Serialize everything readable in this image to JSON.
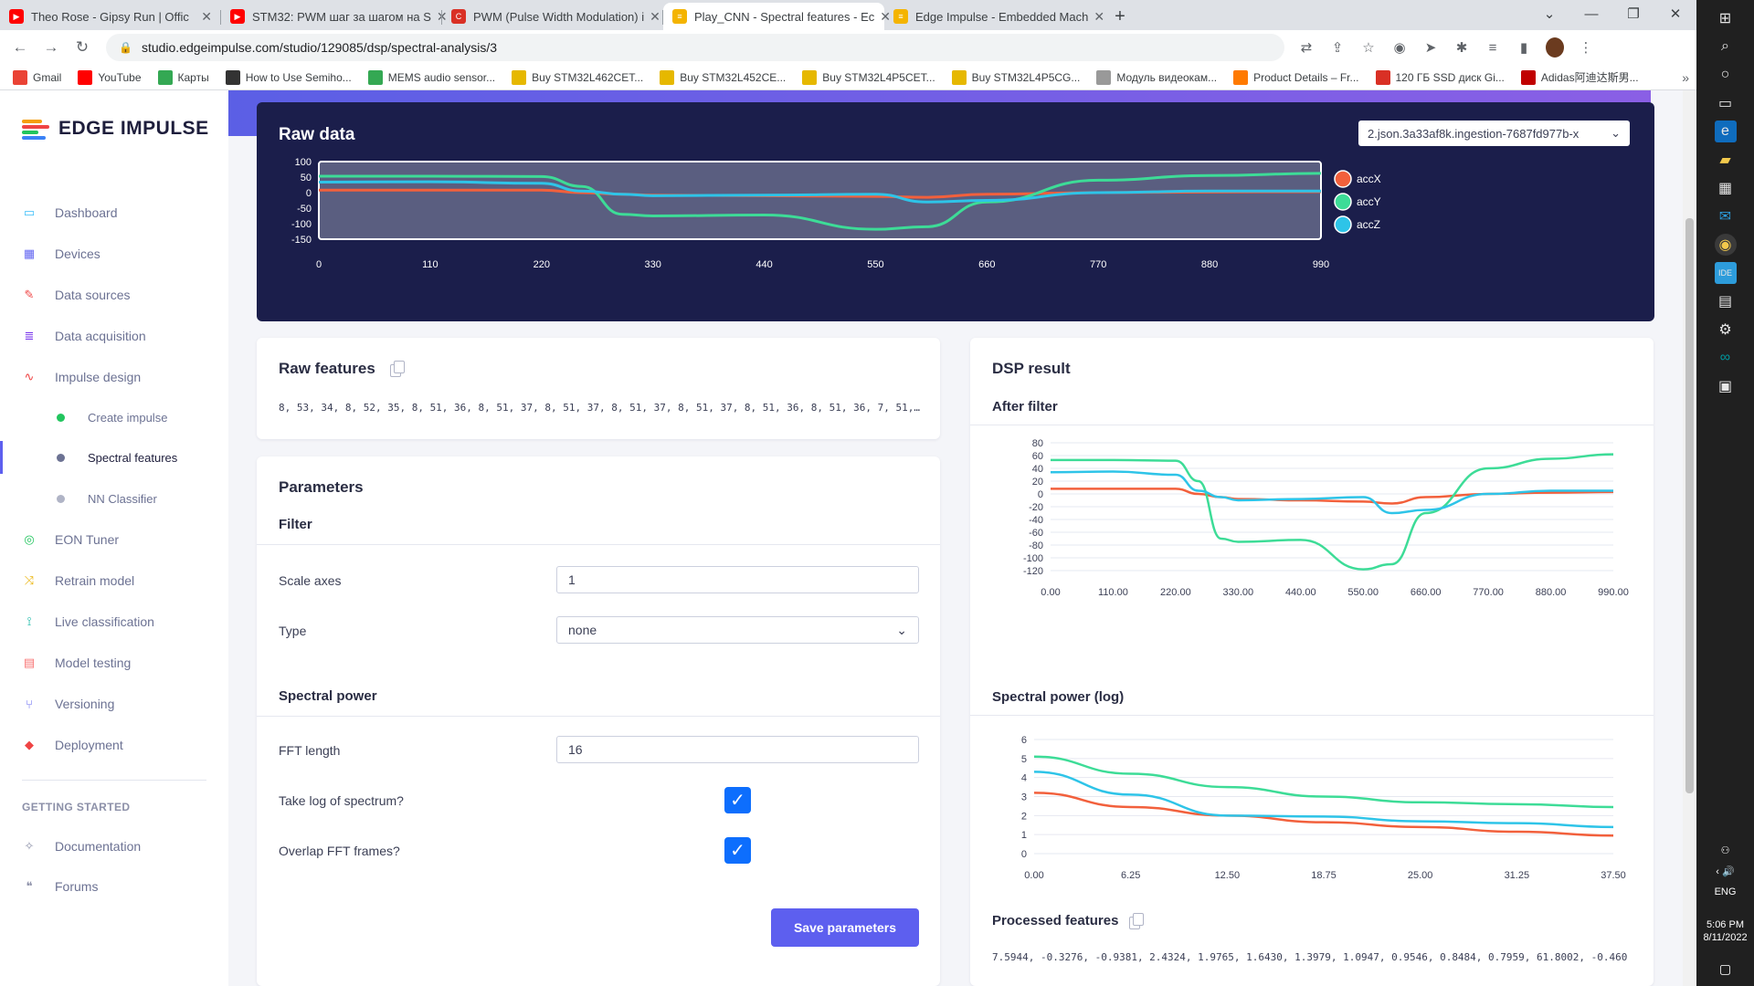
{
  "browser": {
    "tabs": [
      {
        "title": "Theo Rose - Gipsy Run | Offic",
        "icon_color": "#ff0000"
      },
      {
        "title": "STM32: PWM шаг за шагом на S",
        "icon_color": "#ff0000"
      },
      {
        "title": "PWM (Pulse Width Modulation) i",
        "icon_color": "#d93025"
      },
      {
        "title": "Play_CNN - Spectral features - Ec",
        "icon_color": "#f4b400"
      },
      {
        "title": "Edge Impulse - Embedded Mach",
        "icon_color": "#f4b400"
      }
    ],
    "url": "studio.edgeimpulse.com/studio/129085/dsp/spectral-analysis/3",
    "bookmarks": [
      {
        "label": "Gmail",
        "color": "#ea4335"
      },
      {
        "label": "YouTube",
        "color": "#ff0000"
      },
      {
        "label": "Карты",
        "color": "#34a853"
      },
      {
        "label": "How to Use Semiho...",
        "color": "#333333"
      },
      {
        "label": "MEMS audio sensor...",
        "color": "#34a853"
      },
      {
        "label": "Buy STM32L462CET...",
        "color": "#e6b800"
      },
      {
        "label": "Buy STM32L452CE...",
        "color": "#e6b800"
      },
      {
        "label": "Buy STM32L4P5CET...",
        "color": "#e6b800"
      },
      {
        "label": "Buy STM32L4P5CG...",
        "color": "#e6b800"
      },
      {
        "label": "Модуль видеокам...",
        "color": "#999999"
      },
      {
        "label": "Product Details – Fr...",
        "color": "#ff7a00"
      },
      {
        "label": "120 ГБ SSD диск Gi...",
        "color": "#d93025"
      },
      {
        "label": "Adidas阿迪达斯男...",
        "color": "#c00000"
      }
    ]
  },
  "brand": {
    "name": "EDGE IMPULSE"
  },
  "sidebar": {
    "items": [
      {
        "label": "Dashboard",
        "icon": "monitor-icon",
        "color": "#38bdf8"
      },
      {
        "label": "Devices",
        "icon": "chip-icon",
        "color": "#6366f1"
      },
      {
        "label": "Data sources",
        "icon": "wand-icon",
        "color": "#ef4444"
      },
      {
        "label": "Data acquisition",
        "icon": "database-icon",
        "color": "#7c3aed"
      },
      {
        "label": "Impulse design",
        "icon": "pulse-icon",
        "color": "#ef4444"
      }
    ],
    "subitems": [
      {
        "label": "Create impulse",
        "color": "#22c55e"
      },
      {
        "label": "Spectral features",
        "color": "#6c7293"
      },
      {
        "label": "NN Classifier",
        "color": "#b0b4c6"
      }
    ],
    "items2": [
      {
        "label": "EON Tuner",
        "icon": "target-icon",
        "color": "#22c55e"
      },
      {
        "label": "Retrain model",
        "icon": "shuffle-icon",
        "color": "#eab308"
      },
      {
        "label": "Live classification",
        "icon": "signal-icon",
        "color": "#14b8a6"
      },
      {
        "label": "Model testing",
        "icon": "clipboard-icon",
        "color": "#f87171"
      },
      {
        "label": "Versioning",
        "icon": "branch-icon",
        "color": "#6366f1"
      },
      {
        "label": "Deployment",
        "icon": "box-icon",
        "color": "#ef4444"
      }
    ],
    "getting_started": "GETTING STARTED",
    "items3": [
      {
        "label": "Documentation",
        "icon": "book-icon"
      },
      {
        "label": "Forums",
        "icon": "chat-icon"
      }
    ]
  },
  "raw_data": {
    "title": "Raw data",
    "selected_sample": "2.json.3a33af8k.ingestion-7687fd977b-x"
  },
  "raw_features": {
    "title": "Raw features",
    "values": "8, 53, 34, 8, 52, 35, 8, 51, 36, 8, 51, 37, 8, 51, 37, 8, 51, 37, 8, 51, 37, 8, 51, 36, 8, 51, 36, 7, 51,…"
  },
  "parameters": {
    "title": "Parameters",
    "filter_heading": "Filter",
    "scale_axes_label": "Scale axes",
    "scale_axes_value": "1",
    "type_label": "Type",
    "type_value": "none",
    "spectral_heading": "Spectral power",
    "fft_label": "FFT length",
    "fft_value": "16",
    "log_label": "Take log of spectrum?",
    "log_checked": true,
    "overlap_label": "Overlap FFT frames?",
    "overlap_checked": true,
    "save_label": "Save parameters"
  },
  "dsp": {
    "title": "DSP result",
    "after_filter": "After filter",
    "spectral_power": "Spectral power (log)",
    "processed_features": "Processed features",
    "processed_values": "7.5944, -0.3276, -0.9381, 2.4324, 1.9765, 1.6430, 1.3979, 1.0947, 0.9546, 0.8484, 0.7959, 61.8002, -0.460"
  },
  "taskbar": {
    "lang": "ENG",
    "time": "5:06 PM",
    "date": "8/11/2022"
  },
  "chart_data": [
    {
      "type": "line",
      "title": "Raw data",
      "x": [
        0,
        110,
        220,
        260,
        300,
        330,
        440,
        550,
        600,
        660,
        770,
        880,
        990
      ],
      "xlim": [
        0,
        990
      ],
      "ylim": [
        -150,
        100
      ],
      "xticks": [
        "0",
        "110",
        "220",
        "330",
        "440",
        "550",
        "660",
        "770",
        "880",
        "990"
      ],
      "yticks": [
        "100",
        "50",
        "0",
        "-50",
        "-100",
        "-150"
      ],
      "legend": "right",
      "series": [
        {
          "name": "accX",
          "color": "#f2603c",
          "values": [
            8,
            8,
            8,
            0,
            -5,
            -8,
            -10,
            -12,
            -15,
            -5,
            0,
            2,
            3
          ]
        },
        {
          "name": "accY",
          "color": "#3ddc97",
          "values": [
            53,
            53,
            52,
            20,
            -70,
            -75,
            -72,
            -118,
            -110,
            -30,
            40,
            55,
            62
          ]
        },
        {
          "name": "accZ",
          "color": "#2ec4e8",
          "values": [
            34,
            35,
            30,
            5,
            -5,
            -10,
            -8,
            -5,
            -30,
            -25,
            0,
            5,
            5
          ]
        }
      ]
    },
    {
      "type": "line",
      "title": "After filter",
      "x": [
        0,
        110,
        220,
        260,
        300,
        330,
        440,
        550,
        600,
        660,
        770,
        880,
        990
      ],
      "xlim": [
        0,
        990
      ],
      "ylim": [
        -120,
        80
      ],
      "xticks": [
        "0.00",
        "110.00",
        "220.00",
        "330.00",
        "440.00",
        "550.00",
        "660.00",
        "770.00",
        "880.00",
        "990.00"
      ],
      "yticks": [
        "80",
        "60",
        "40",
        "20",
        "0",
        "-20",
        "-40",
        "-60",
        "-80",
        "-100",
        "-120"
      ],
      "series": [
        {
          "color": "#f2603c",
          "values": [
            8,
            8,
            8,
            0,
            -5,
            -8,
            -10,
            -12,
            -15,
            -5,
            0,
            2,
            3
          ]
        },
        {
          "color": "#3ddc97",
          "values": [
            53,
            53,
            52,
            20,
            -70,
            -75,
            -72,
            -118,
            -110,
            -30,
            40,
            55,
            62
          ]
        },
        {
          "color": "#2ec4e8",
          "values": [
            34,
            35,
            30,
            5,
            -5,
            -10,
            -8,
            -5,
            -30,
            -25,
            0,
            5,
            5
          ]
        }
      ]
    },
    {
      "type": "line",
      "title": "Spectral power (log)",
      "x": [
        0,
        6.25,
        12.5,
        18.75,
        25,
        31.25,
        37.5
      ],
      "xlim": [
        0,
        37.5
      ],
      "ylim": [
        0,
        6
      ],
      "xticks": [
        "0.00",
        "6.25",
        "12.50",
        "18.75",
        "25.00",
        "31.25",
        "37.50"
      ],
      "yticks": [
        "6",
        "5",
        "4",
        "3",
        "2",
        "1",
        "0"
      ],
      "series": [
        {
          "color": "#f2603c",
          "values": [
            3.2,
            2.45,
            2.0,
            1.65,
            1.4,
            1.15,
            0.95
          ]
        },
        {
          "color": "#3ddc97",
          "values": [
            5.1,
            4.2,
            3.5,
            3.0,
            2.7,
            2.6,
            2.45
          ]
        },
        {
          "color": "#2ec4e8",
          "values": [
            4.3,
            3.1,
            2.0,
            1.95,
            1.7,
            1.6,
            1.4
          ]
        }
      ]
    }
  ]
}
